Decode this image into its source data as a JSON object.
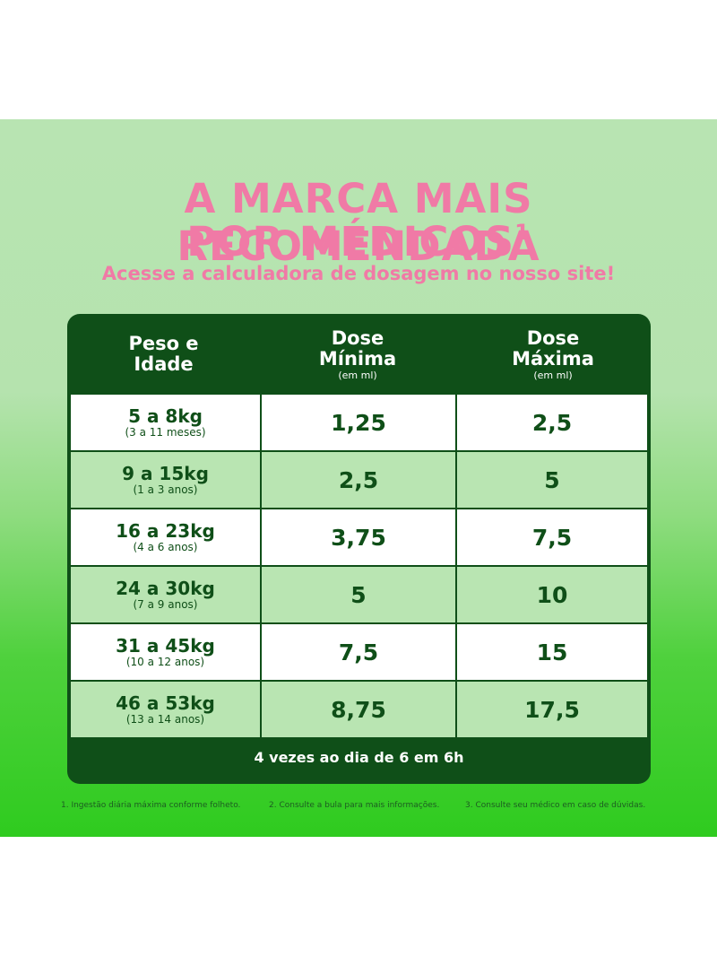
{
  "headline": {
    "line1": "A MARCA MAIS RECOMENDADA",
    "line2": "POR MÉDICOS",
    "line2_sup": "1",
    "subtitle": "Acesse a calculadora de dosagem no nosso site!"
  },
  "table": {
    "headers": [
      {
        "title_line1": "Peso e",
        "title_line2": "Idade",
        "unit": ""
      },
      {
        "title_line1": "Dose",
        "title_line2": "Mínima",
        "unit": "(em ml)"
      },
      {
        "title_line1": "Dose",
        "title_line2": "Máxima",
        "unit": "(em ml)"
      }
    ],
    "rows": [
      {
        "weight": "5 a 8kg",
        "age": "(3 a 11 meses)",
        "min": "1,25",
        "max": "2,5"
      },
      {
        "weight": "9 a 15kg",
        "age": "(1 a 3 anos)",
        "min": "2,5",
        "max": "5"
      },
      {
        "weight": "16 a 23kg",
        "age": "(4 a 6 anos)",
        "min": "3,75",
        "max": "7,5"
      },
      {
        "weight": "24 a 30kg",
        "age": "(7 a 9 anos)",
        "min": "5",
        "max": "10"
      },
      {
        "weight": "31 a 45kg",
        "age": "(10 a 12 anos)",
        "min": "7,5",
        "max": "15"
      },
      {
        "weight": "46 a 53kg",
        "age": "(13 a 14 anos)",
        "min": "8,75",
        "max": "17,5"
      }
    ],
    "footer": "4 vezes ao dia de 6 em 6h"
  },
  "footnotes": [
    "1. Ingestão diária máxima conforme folheto.",
    "2. Consulte a bula para mais informações.",
    "3. Consulte seu médico em caso de dúvidas."
  ],
  "colors": {
    "pink": "#f07aa6",
    "dark_green": "#0f4f18",
    "row_white": "#ffffff",
    "row_light_green": "#b9e5b2"
  }
}
